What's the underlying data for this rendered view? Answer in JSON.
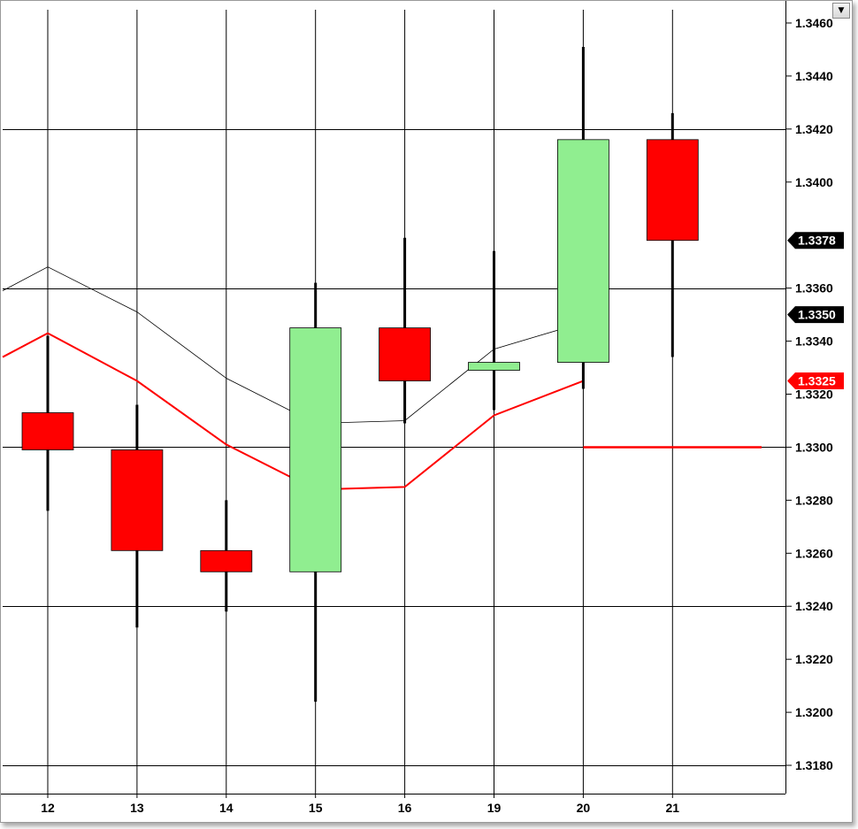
{
  "chart_data": {
    "type": "candlestick",
    "categories": [
      "12",
      "13",
      "14",
      "15",
      "16",
      "19",
      "20",
      "21"
    ],
    "candles": [
      {
        "x": "12",
        "open": 1.3313,
        "high": 1.3342,
        "low": 1.3276,
        "close": 1.3299
      },
      {
        "x": "13",
        "open": 1.3299,
        "high": 1.3316,
        "low": 1.3232,
        "close": 1.3261
      },
      {
        "x": "14",
        "open": 1.3261,
        "high": 1.328,
        "low": 1.3238,
        "close": 1.3253
      },
      {
        "x": "15",
        "open": 1.3253,
        "high": 1.3362,
        "low": 1.3204,
        "close": 1.3345
      },
      {
        "x": "16",
        "open": 1.3345,
        "high": 1.3379,
        "low": 1.3309,
        "close": 1.3325
      },
      {
        "x": "19",
        "open": 1.3329,
        "high": 1.3374,
        "low": 1.3314,
        "close": 1.3332
      },
      {
        "x": "20",
        "open": 1.3332,
        "high": 1.3451,
        "low": 1.3322,
        "close": 1.3416
      },
      {
        "x": "21",
        "open": 1.3416,
        "high": 1.3426,
        "low": 1.3334,
        "close": 1.3378
      }
    ],
    "series": [
      {
        "color": "#000000",
        "width": 0.8,
        "values": [
          1.3368,
          1.3351,
          1.3326,
          1.3309,
          1.331,
          1.3337,
          1.3347,
          null
        ],
        "lead_in": 1.3359
      },
      {
        "color": "#ff0000",
        "width": 2,
        "values": [
          1.3343,
          1.3325,
          1.3301,
          1.3284,
          1.3285,
          1.3312,
          1.3325,
          null
        ],
        "lead_in": 1.3334
      }
    ],
    "hline": {
      "value": 1.33,
      "from": "20",
      "color": "#ff0000"
    },
    "y_ticks": [
      "1.3460",
      "1.3440",
      "1.3420",
      "1.3400",
      "1.3360",
      "1.3340",
      "1.3320",
      "1.3300",
      "1.3280",
      "1.3260",
      "1.3240",
      "1.3220",
      "1.3200",
      "1.3180"
    ],
    "ylim": [
      1.3171,
      1.3465
    ],
    "grid_h": [
      1.342,
      1.336,
      1.33,
      1.324,
      1.318
    ],
    "price_badges": [
      {
        "value": 1.3378,
        "label": "1.3378",
        "color": "#000000"
      },
      {
        "value": 1.335,
        "label": "1.3350",
        "color": "#000000"
      },
      {
        "value": 1.3325,
        "label": "1.3325",
        "color": "#ff0000"
      }
    ],
    "colors": {
      "up": "#90ee90",
      "down": "#ff0000",
      "wick": "#000000",
      "grid": "#000000"
    }
  },
  "ui": {
    "menu_icon": "chevron-down-icon",
    "menu_glyph": "▼"
  }
}
